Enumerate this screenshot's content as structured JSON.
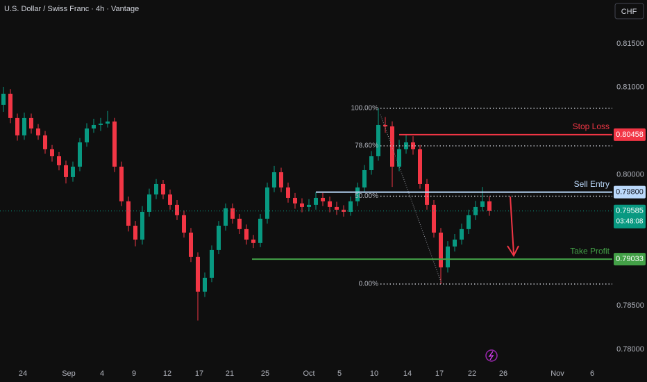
{
  "chart_data": {
    "type": "candlestick",
    "title": "U.S. Dollar / Swiss Franc · 4h · Vantage",
    "currency_button": "CHF",
    "up_color": "#089981",
    "down_color": "#f23645",
    "grid": false,
    "xlim": [
      -0.5,
      87.7
    ],
    "ylim": [
      0.77865,
      0.82
    ],
    "yticks": [
      {
        "value": 0.815,
        "label": "0.81500"
      },
      {
        "value": 0.81,
        "label": "0.81000"
      },
      {
        "value": 0.8,
        "label": "0.80000"
      },
      {
        "value": 0.785,
        "label": "0.78500"
      },
      {
        "value": 0.78,
        "label": "0.78000"
      }
    ],
    "xticks": [
      {
        "value": 2.8,
        "label": "24"
      },
      {
        "value": 9.4,
        "label": "Sep"
      },
      {
        "value": 14.2,
        "label": "4"
      },
      {
        "value": 18.8,
        "label": "9"
      },
      {
        "value": 23.6,
        "label": "12"
      },
      {
        "value": 28.2,
        "label": "17"
      },
      {
        "value": 32.6,
        "label": "21"
      },
      {
        "value": 37.7,
        "label": "25"
      },
      {
        "value": 44.0,
        "label": "Oct"
      },
      {
        "value": 48.4,
        "label": "5"
      },
      {
        "value": 53.4,
        "label": "10"
      },
      {
        "value": 58.2,
        "label": "14"
      },
      {
        "value": 62.8,
        "label": "17"
      },
      {
        "value": 67.5,
        "label": "22"
      },
      {
        "value": 72.0,
        "label": "26"
      },
      {
        "value": 79.8,
        "label": "Nov"
      },
      {
        "value": 84.8,
        "label": "6"
      }
    ],
    "open": [
      0.808,
      0.80927,
      0.80649,
      0.8045,
      0.80649,
      0.80529,
      0.8045,
      0.80291,
      0.80211,
      0.80108,
      0.79973,
      0.80092,
      0.8037,
      0.80529,
      0.80569,
      0.80585,
      0.80609,
      0.80092,
      0.79695,
      0.79416,
      0.79257,
      0.79575,
      0.79774,
      0.79893,
      0.79774,
      0.79655,
      0.79536,
      0.79337,
      0.79059,
      0.78661,
      0.7882,
      0.79138,
      0.79416,
      0.79615,
      0.79496,
      0.79377,
      0.79257,
      0.79218,
      0.79496,
      0.79854,
      0.80028,
      0.79854,
      0.79734,
      0.79671,
      0.79631,
      0.79655,
      0.79734,
      0.79695,
      0.79631,
      0.79599,
      0.79575,
      0.79695,
      0.79854,
      0.80052,
      0.80211,
      0.80569,
      0.80553,
      0.80092,
      0.80291,
      0.8037,
      0.80291,
      0.79893,
      0.79655,
      0.79337,
      0.78939,
      0.79178,
      0.79257,
      0.79377,
      0.79536,
      0.79631,
      0.79695
    ],
    "high": [
      0.81006,
      0.8098,
      0.807,
      0.8071,
      0.807,
      0.8058,
      0.805,
      0.8034,
      0.8026,
      0.8016,
      0.8015,
      0.8042,
      0.8059,
      0.8064,
      0.8065,
      0.8073,
      0.8065,
      0.8015,
      0.7975,
      0.7947,
      0.7964,
      0.7984,
      0.7995,
      0.7994,
      0.7983,
      0.7971,
      0.7959,
      0.7939,
      0.7911,
      0.7888,
      0.7919,
      0.7947,
      0.7967,
      0.7967,
      0.7955,
      0.7943,
      0.7931,
      0.7955,
      0.7991,
      0.801,
      0.8008,
      0.7991,
      0.7979,
      0.7973,
      0.7972,
      0.798,
      0.7979,
      0.7975,
      0.7969,
      0.7965,
      0.7975,
      0.7991,
      0.8011,
      0.8027,
      0.8076,
      0.8066,
      0.8061,
      0.804,
      0.80458,
      0.8044,
      0.8034,
      0.7995,
      0.7971,
      0.7939,
      0.7924,
      0.7932,
      0.7944,
      0.796,
      0.797,
      0.7986,
      0.7975
    ],
    "low": [
      0.8072,
      0.8059,
      0.8039,
      0.804,
      0.8047,
      0.804,
      0.8024,
      0.8015,
      0.8005,
      0.799,
      0.7992,
      0.8004,
      0.8032,
      0.8048,
      0.805,
      0.8054,
      0.8003,
      0.7964,
      0.7935,
      0.7918,
      0.792,
      0.7952,
      0.7972,
      0.7972,
      0.796,
      0.7948,
      0.7928,
      0.79,
      0.7833,
      0.786,
      0.7877,
      0.7909,
      0.7936,
      0.7944,
      0.7932,
      0.792,
      0.7916,
      0.7917,
      0.7944,
      0.798,
      0.798,
      0.7968,
      0.7961,
      0.7957,
      0.7958,
      0.796,
      0.7964,
      0.7957,
      0.7954,
      0.7952,
      0.7953,
      0.7964,
      0.798,
      0.8,
      0.8016,
      0.8048,
      0.7986,
      0.8004,
      0.8024,
      0.8023,
      0.7984,
      0.796,
      0.7928,
      0.78748,
      0.7888,
      0.7912,
      0.792,
      0.7932,
      0.7948,
      0.7958,
      0.7953
    ],
    "close": [
      0.80927,
      0.80649,
      0.8045,
      0.80649,
      0.80529,
      0.8045,
      0.80291,
      0.80211,
      0.80108,
      0.79973,
      0.80092,
      0.8037,
      0.80529,
      0.80569,
      0.80585,
      0.80609,
      0.80092,
      0.79695,
      0.79416,
      0.79257,
      0.79575,
      0.79774,
      0.79893,
      0.79774,
      0.79655,
      0.79536,
      0.79337,
      0.79059,
      0.78661,
      0.7882,
      0.79138,
      0.79416,
      0.79615,
      0.79496,
      0.79377,
      0.79257,
      0.79218,
      0.79496,
      0.79854,
      0.80028,
      0.79854,
      0.79734,
      0.79671,
      0.79631,
      0.79655,
      0.79734,
      0.79695,
      0.79631,
      0.79599,
      0.79575,
      0.79695,
      0.79854,
      0.80052,
      0.80211,
      0.80569,
      0.80553,
      0.80092,
      0.80291,
      0.8037,
      0.80291,
      0.79893,
      0.79655,
      0.79337,
      0.78939,
      0.79178,
      0.79257,
      0.79377,
      0.79536,
      0.79631,
      0.79695,
      0.79585
    ],
    "fib_levels": [
      {
        "label": "100.00%",
        "price": 0.8076
      },
      {
        "label": "78.60%",
        "price": 0.8033
      },
      {
        "label": "50.00%",
        "price": 0.79754
      },
      {
        "label": "0.00%",
        "price": 0.78748
      }
    ],
    "levels": [
      {
        "name": "Stop Loss",
        "value": 0.80458,
        "value_label": "0.80458",
        "color": "#f23645"
      },
      {
        "name": "Sell Entry",
        "value": 0.798,
        "value_label": "0.79800",
        "color": "#bbd9fb"
      },
      {
        "name": "Take Profit",
        "value": 0.79033,
        "value_label": "0.79033",
        "color": "#43a047"
      }
    ],
    "current_price": {
      "value": 0.79585,
      "value_label": "0.79585",
      "countdown": "03:48:08",
      "color": "#089981"
    }
  }
}
